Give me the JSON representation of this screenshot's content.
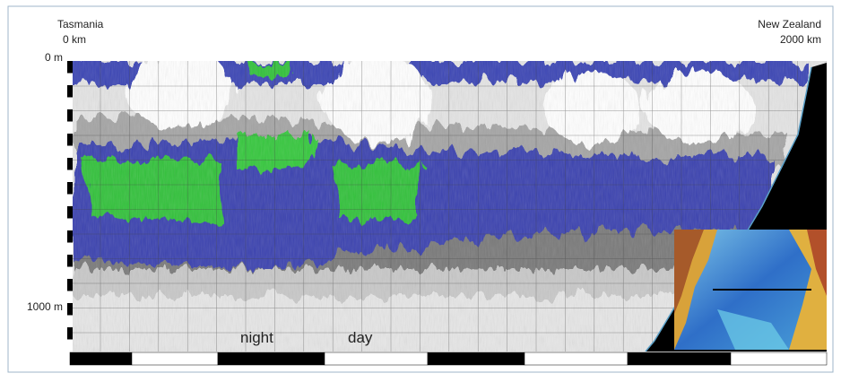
{
  "figure": {
    "top_left": {
      "place": "Tasmania",
      "distance": "0 km"
    },
    "top_right": {
      "place": "New Zealand",
      "distance": "2000 km"
    },
    "depth_labels": [
      "0 m",
      "1000 m"
    ],
    "period_labels": [
      "night",
      "day"
    ]
  }
}
